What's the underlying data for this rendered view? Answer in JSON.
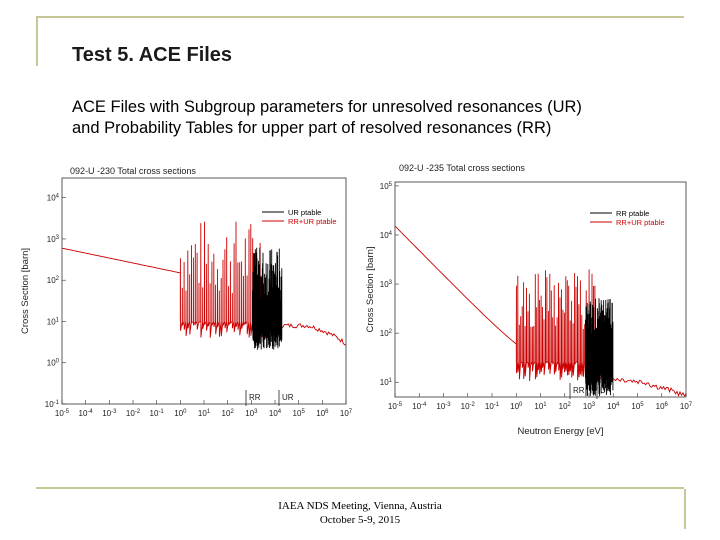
{
  "slide": {
    "title": "Test 5. ACE Files",
    "subtitle_line1": "ACE Files with Subgroup parameters for unresolved resonances (UR)",
    "subtitle_line2": "and Probability Tables for upper part of resolved resonances (RR)",
    "footer_line1": "IAEA NDS Meeting, Vienna, Austria",
    "footer_line2": "October 5-9, 2015",
    "accent_color": "#c8c896"
  },
  "chart_data": [
    {
      "type": "line",
      "title": "092-U -230 Total cross sections",
      "xlabel": "",
      "ylabel": "Cross Section [barn]",
      "x_scale": "log",
      "y_scale": "log",
      "xlim": [
        1e-05,
        10000000.0
      ],
      "ylim": [
        0.1,
        30000
      ],
      "x_tick_labels": [
        "10-5",
        "10-4",
        "10-3",
        "10-2",
        "10-1",
        "100",
        "101",
        "102",
        "103",
        "104",
        "105",
        "106",
        "107"
      ],
      "y_tick_labels": [
        "10-1",
        "100",
        "101",
        "102",
        "103",
        "104"
      ],
      "region_labels": [
        "RR",
        "UR"
      ],
      "series": [
        {
          "name": "UR ptable",
          "color": "#000000"
        },
        {
          "name": "RR+UR ptable",
          "color": "#cc0000"
        }
      ],
      "grid": false,
      "legend": "top-right"
    },
    {
      "type": "line",
      "title": "092-U -235 Total cross sections",
      "xlabel": "Neutron Energy [eV]",
      "ylabel": "Cross Section [barn]",
      "x_scale": "log",
      "y_scale": "log",
      "xlim": [
        1e-05,
        10000000.0
      ],
      "ylim": [
        5,
        120000
      ],
      "x_tick_labels": [
        "10-5",
        "10-4",
        "10-3",
        "10-2",
        "10-1",
        "100",
        "101",
        "102",
        "103",
        "104",
        "105",
        "106",
        "107"
      ],
      "y_tick_labels": [
        "101",
        "102",
        "103",
        "104",
        "105"
      ],
      "region_labels": [
        "RR",
        "UR"
      ],
      "series": [
        {
          "name": "RR ptable",
          "color": "#000000"
        },
        {
          "name": "RR+UR ptable",
          "color": "#cc0000"
        }
      ],
      "grid": false,
      "legend": "top-right"
    }
  ]
}
